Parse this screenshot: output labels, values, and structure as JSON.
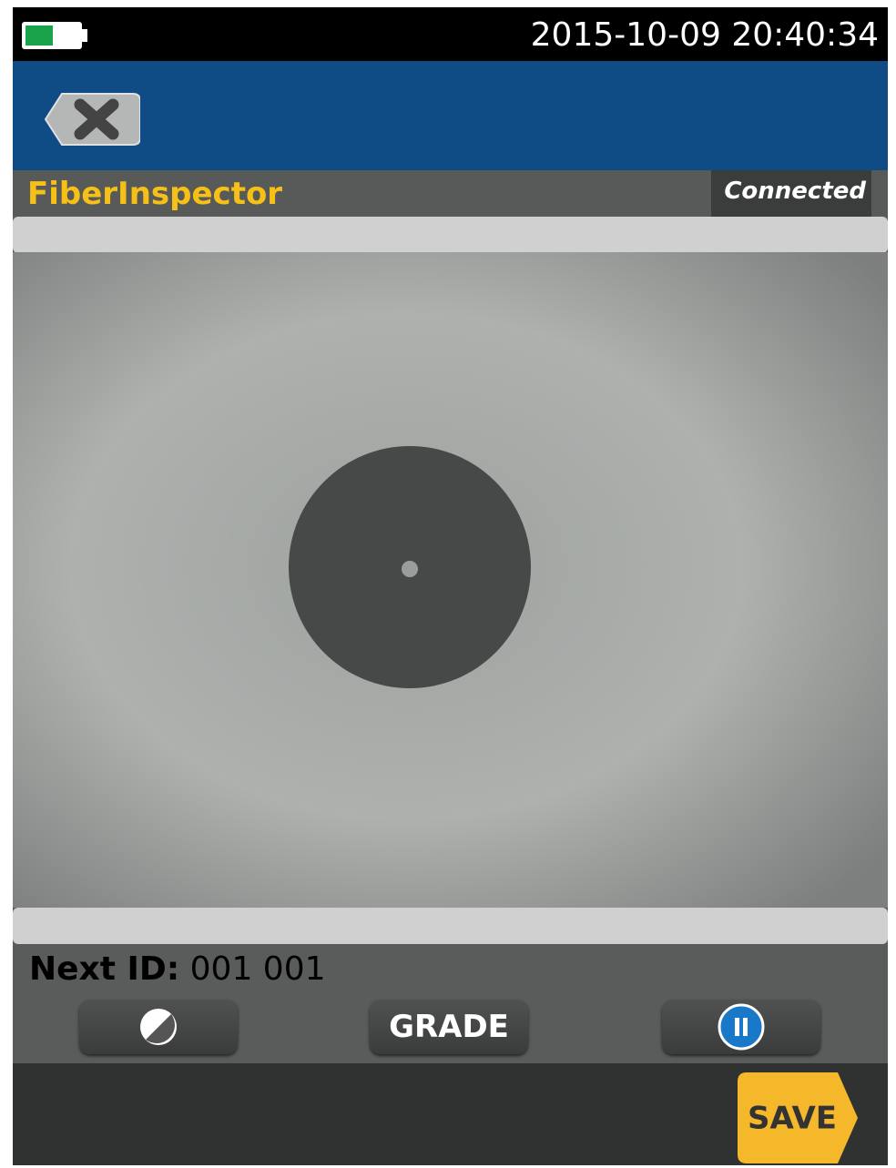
{
  "status_bar": {
    "datetime": "2015-10-09 20:40:34"
  },
  "header": {
    "app_title": "FiberInspector",
    "connection_status": "Connected"
  },
  "footer": {
    "next_id_label": "Next ID:",
    "next_id_value": "001 001"
  },
  "buttons": {
    "grade": "GRADE",
    "save": "SAVE"
  }
}
